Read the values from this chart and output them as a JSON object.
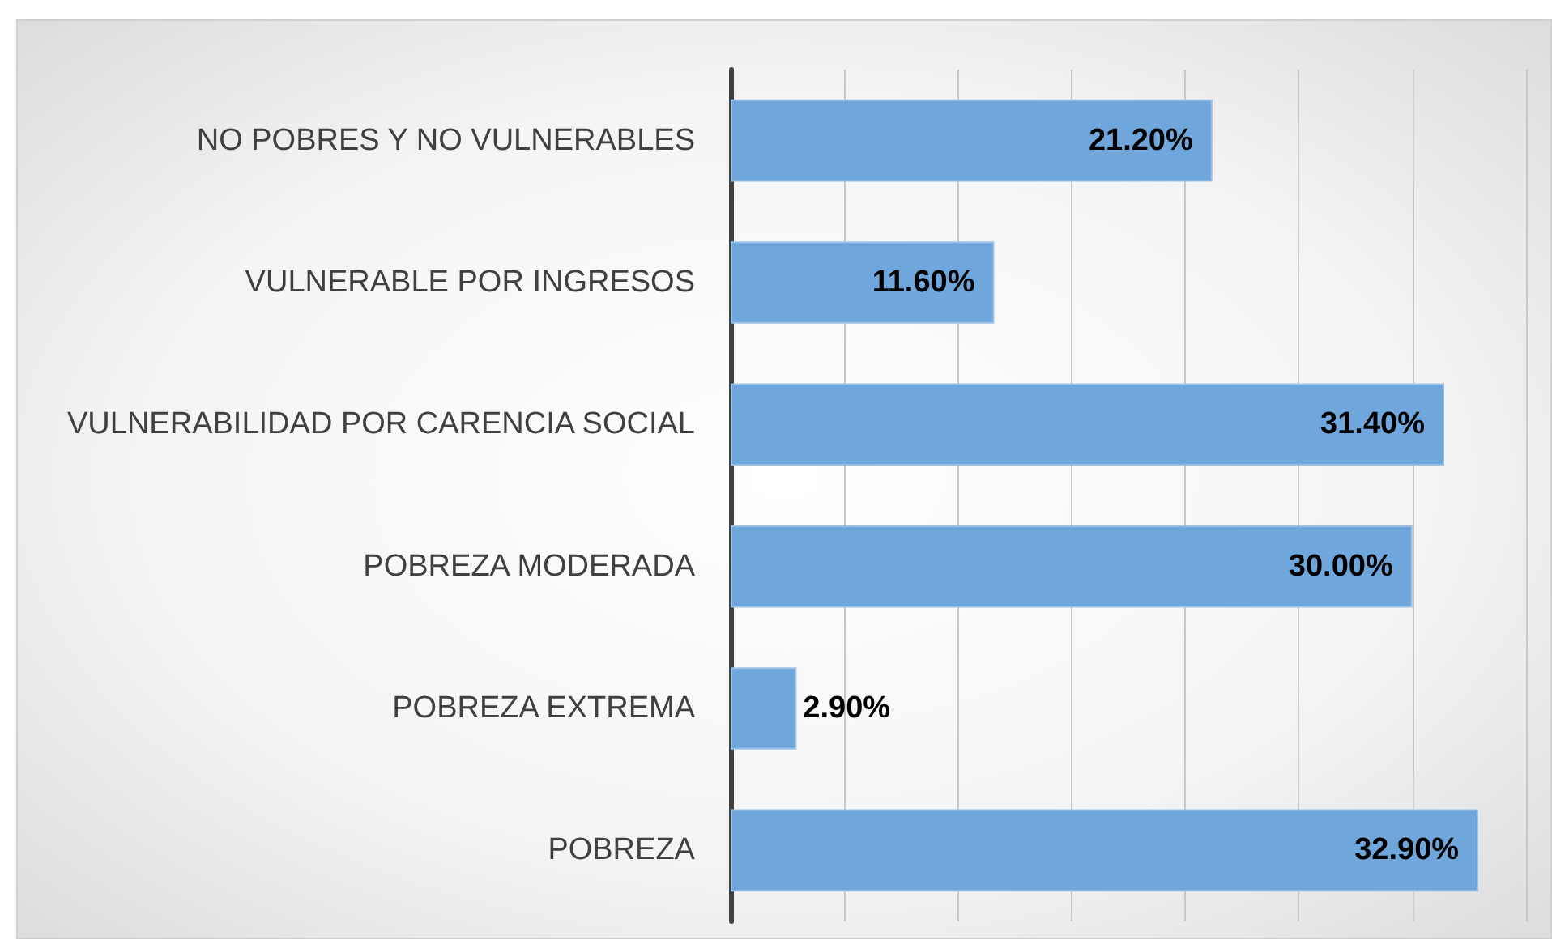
{
  "chart_data": {
    "type": "bar",
    "orientation": "horizontal",
    "categories": [
      "NO POBRES Y NO VULNERABLES",
      "VULNERABLE POR INGRESOS",
      "VULNERABILIDAD POR CARENCIA SOCIAL",
      "POBREZA MODERADA",
      "POBREZA EXTREMA",
      "POBREZA"
    ],
    "values": [
      21.2,
      11.6,
      31.4,
      30.0,
      2.9,
      32.9
    ],
    "value_labels": [
      "21.20%",
      "11.60%",
      "31.40%",
      "30.00%",
      "2.90%",
      "32.90%"
    ],
    "color": "#6fa6dc",
    "xlim": [
      0,
      35
    ],
    "xticks": [
      {
        "value": 0,
        "label": null
      },
      {
        "value": 5,
        "label": null
      },
      {
        "value": 10,
        "label": null
      },
      {
        "value": 15,
        "label": null
      },
      {
        "value": 20,
        "label": null
      },
      {
        "value": 25,
        "label": null
      },
      {
        "value": 30,
        "label": null
      },
      {
        "value": 35,
        "label": null
      }
    ],
    "grid": "x",
    "tick_labels": "y"
  }
}
